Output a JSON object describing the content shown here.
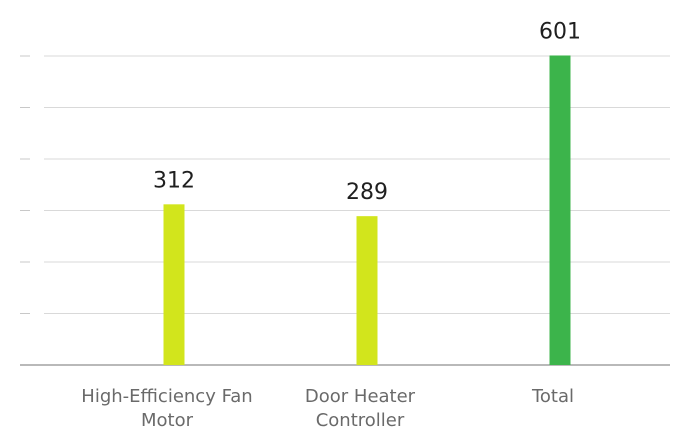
{
  "chart_data": {
    "type": "bar",
    "categories": [
      [
        "High-Efficiency Fan",
        "Motor"
      ],
      [
        "Door Heater",
        "Controller"
      ],
      [
        "Total"
      ]
    ],
    "values": [
      312,
      289,
      601
    ],
    "bar_colors": [
      "#d2e51c",
      "#d2e51c",
      "#3cb44b"
    ],
    "ylim": [
      0,
      600
    ],
    "grid": true,
    "title": "",
    "xlabel": "",
    "ylabel": ""
  }
}
